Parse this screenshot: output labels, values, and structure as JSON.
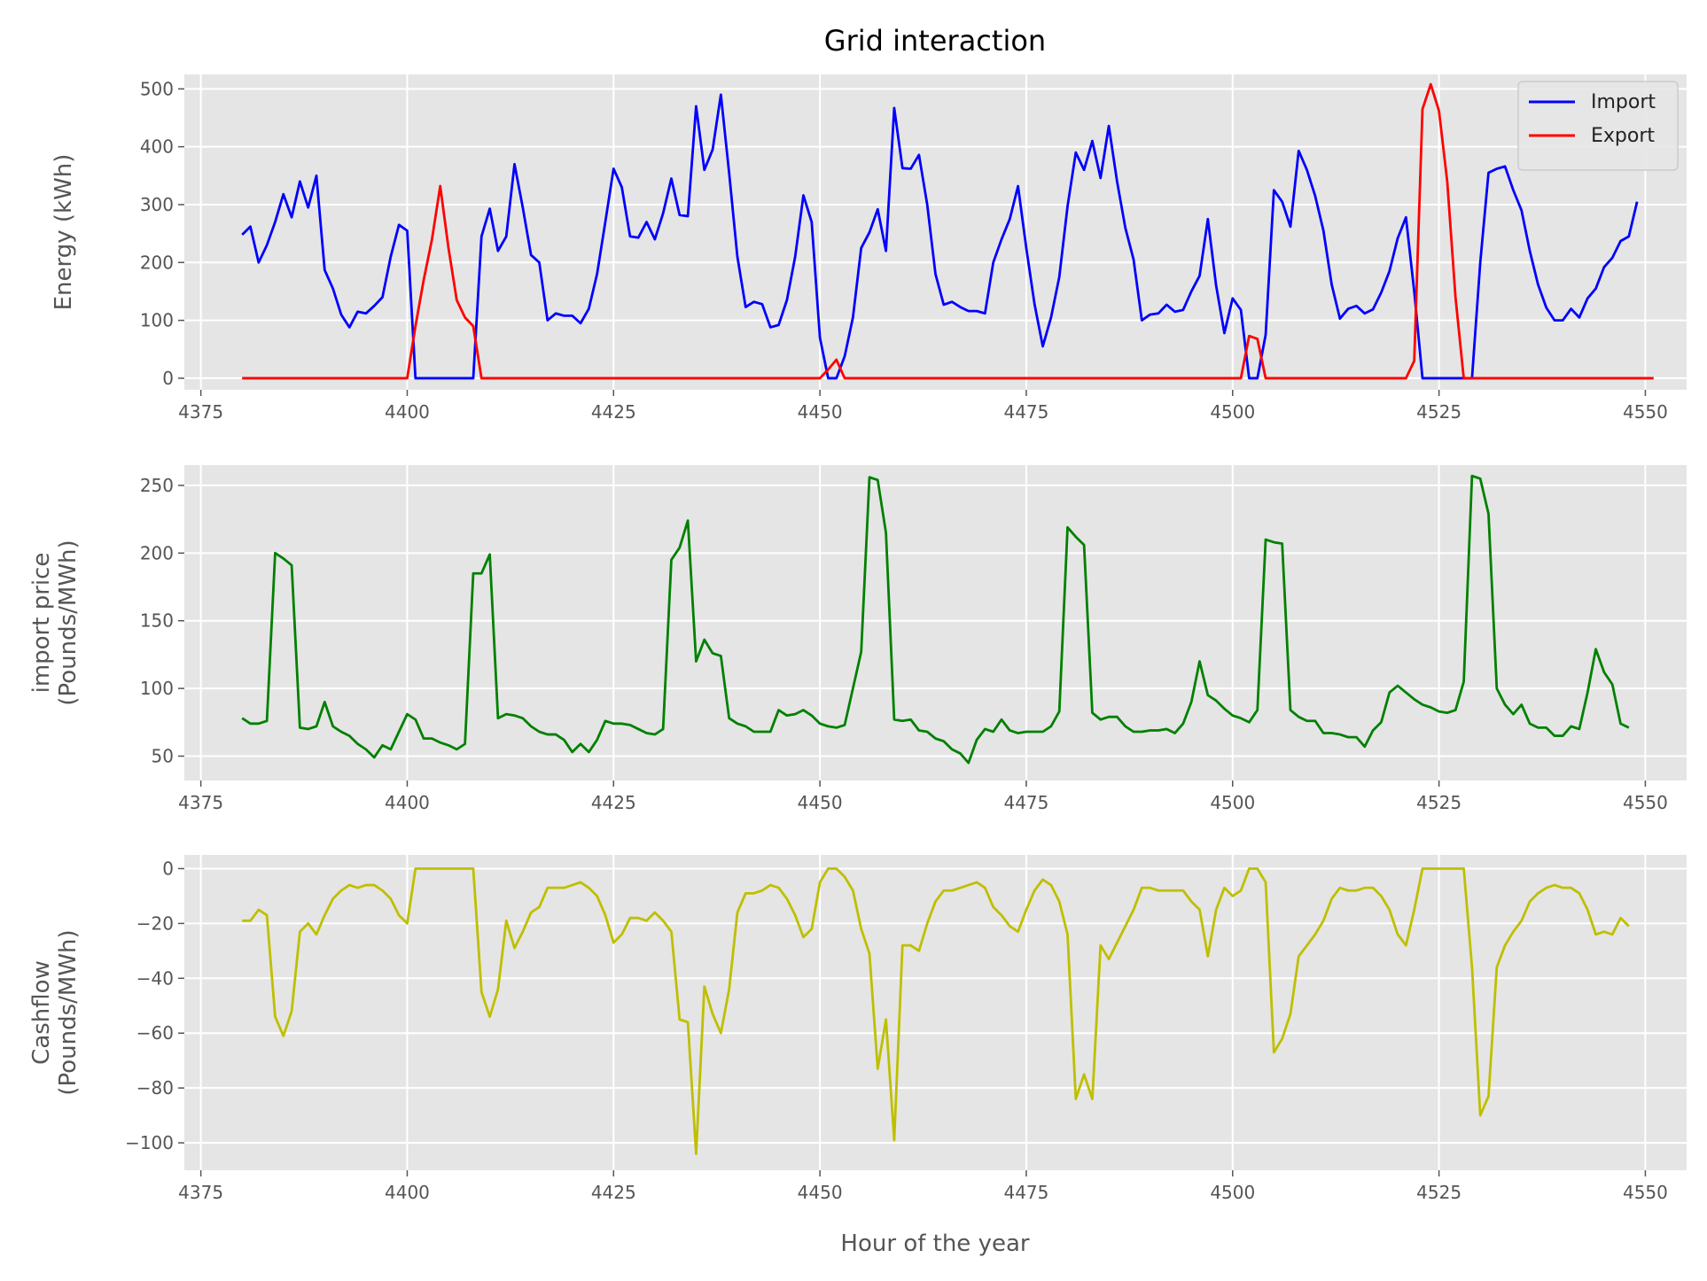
{
  "figure": {
    "title": "Grid interaction",
    "xlabel": "Hour of the year"
  },
  "chart_data": [
    {
      "type": "line",
      "title": "Grid interaction",
      "xlabel": "",
      "ylabel": "Energy (kWh)",
      "xlim": [
        4373,
        4555
      ],
      "ylim": [
        -20,
        525
      ],
      "xticks": [
        4375,
        4400,
        4425,
        4450,
        4475,
        4500,
        4525,
        4550
      ],
      "yticks": [
        0,
        100,
        200,
        300,
        400,
        500
      ],
      "grid": true,
      "legend": "top-right",
      "series": [
        {
          "name": "Import",
          "color": "#0000ff",
          "x_start": 4380,
          "x_step": 1,
          "values": [
            248,
            262,
            200,
            230,
            270,
            318,
            278,
            340,
            295,
            350,
            187,
            155,
            110,
            88,
            115,
            112,
            125,
            140,
            210,
            265,
            255,
            0,
            0,
            0,
            0,
            0,
            0,
            0,
            0,
            245,
            293,
            220,
            245,
            370,
            295,
            213,
            200,
            100,
            112,
            108,
            108,
            95,
            120,
            180,
            270,
            362,
            330,
            245,
            243,
            270,
            240,
            285,
            345,
            282,
            280,
            470,
            360,
            395,
            490,
            355,
            210,
            123,
            132,
            128,
            88,
            92,
            135,
            210,
            316,
            270,
            70,
            0,
            0,
            38,
            105,
            225,
            252,
            292,
            220,
            467,
            363,
            362,
            386,
            300,
            180,
            127,
            132,
            123,
            116,
            116,
            112,
            200,
            240,
            275,
            332,
            225,
            128,
            55,
            105,
            175,
            297,
            390,
            360,
            410,
            346,
            436,
            340,
            260,
            205,
            100,
            110,
            112,
            127,
            115,
            118,
            150,
            177,
            275,
            160,
            78,
            138,
            118,
            0,
            0,
            75,
            325,
            305,
            262,
            393,
            360,
            315,
            255,
            162,
            103,
            120,
            125,
            112,
            119,
            148,
            185,
            242,
            278,
            150,
            0,
            0,
            0,
            0,
            0,
            0,
            0,
            200,
            355,
            362,
            366,
            325,
            290,
            220,
            162,
            122,
            100,
            100,
            120,
            105,
            138,
            155,
            192,
            208,
            237,
            245,
            305
          ]
        },
        {
          "name": "Export",
          "color": "#ff0000",
          "x_start": 4380,
          "x_step": 1,
          "values": [
            0,
            0,
            0,
            0,
            0,
            0,
            0,
            0,
            0,
            0,
            0,
            0,
            0,
            0,
            0,
            0,
            0,
            0,
            0,
            0,
            0,
            90,
            170,
            240,
            332,
            225,
            135,
            105,
            90,
            0,
            0,
            0,
            0,
            0,
            0,
            0,
            0,
            0,
            0,
            0,
            0,
            0,
            0,
            0,
            0,
            0,
            0,
            0,
            0,
            0,
            0,
            0,
            0,
            0,
            0,
            0,
            0,
            0,
            0,
            0,
            0,
            0,
            0,
            0,
            0,
            0,
            0,
            0,
            0,
            0,
            0,
            15,
            32,
            0,
            0,
            0,
            0,
            0,
            0,
            0,
            0,
            0,
            0,
            0,
            0,
            0,
            0,
            0,
            0,
            0,
            0,
            0,
            0,
            0,
            0,
            0,
            0,
            0,
            0,
            0,
            0,
            0,
            0,
            0,
            0,
            0,
            0,
            0,
            0,
            0,
            0,
            0,
            0,
            0,
            0,
            0,
            0,
            0,
            0,
            0,
            0,
            0,
            73,
            68,
            0,
            0,
            0,
            0,
            0,
            0,
            0,
            0,
            0,
            0,
            0,
            0,
            0,
            0,
            0,
            0,
            0,
            0,
            30,
            465,
            508,
            462,
            340,
            140,
            0,
            0,
            0,
            0,
            0,
            0,
            0,
            0,
            0,
            0,
            0,
            0,
            0,
            0,
            0,
            0,
            0,
            0,
            0,
            0,
            0,
            0,
            0,
            0
          ]
        }
      ]
    },
    {
      "type": "line",
      "title": "",
      "xlabel": "",
      "ylabel": "import price\n(Pounds/MWh)",
      "xlim": [
        4373,
        4555
      ],
      "ylim": [
        32,
        265
      ],
      "xticks": [
        4375,
        4400,
        4425,
        4450,
        4475,
        4500,
        4525,
        4550
      ],
      "yticks": [
        50,
        100,
        150,
        200,
        250
      ],
      "grid": true,
      "legend": "none",
      "series": [
        {
          "name": "",
          "color": "#008000",
          "x_start": 4380,
          "x_step": 1,
          "values": [
            78,
            74,
            74,
            76,
            200,
            196,
            191,
            71,
            70,
            72,
            90,
            72,
            68,
            65,
            59,
            55,
            49,
            58,
            55,
            68,
            81,
            77,
            63,
            63,
            60,
            58,
            55,
            59,
            185,
            185,
            199,
            78,
            81,
            80,
            78,
            72,
            68,
            66,
            66,
            62,
            53,
            59,
            53,
            62,
            76,
            74,
            74,
            73,
            70,
            67,
            66,
            70,
            195,
            204,
            224,
            120,
            136,
            126,
            124,
            78,
            74,
            72,
            68,
            68,
            68,
            84,
            80,
            81,
            84,
            80,
            74,
            72,
            71,
            73,
            100,
            127,
            256,
            254,
            215,
            77,
            76,
            77,
            69,
            68,
            63,
            61,
            55,
            52,
            45,
            62,
            70,
            68,
            77,
            69,
            67,
            68,
            68,
            68,
            72,
            83,
            219,
            212,
            206,
            82,
            77,
            79,
            79,
            72,
            68,
            68,
            69,
            69,
            70,
            67,
            74,
            90,
            120,
            95,
            91,
            85,
            80,
            78,
            75,
            84,
            210,
            208,
            207,
            84,
            79,
            76,
            76,
            67,
            67,
            66,
            64,
            64,
            57,
            69,
            75,
            97,
            102,
            97,
            92,
            88,
            86,
            83,
            82,
            84,
            105,
            257,
            255,
            229,
            100,
            88,
            81,
            88,
            74,
            71,
            71,
            65,
            65,
            72,
            70,
            97,
            129,
            112,
            103,
            74,
            71
          ]
        }
      ]
    },
    {
      "type": "line",
      "title": "",
      "xlabel": "Hour of the year",
      "ylabel": "Cashflow\n(Pounds/MWh)",
      "xlim": [
        4373,
        4555
      ],
      "ylim": [
        -110,
        5
      ],
      "xticks": [
        4375,
        4400,
        4425,
        4450,
        4475,
        4500,
        4525,
        4550
      ],
      "yticks": [
        0,
        -20,
        -40,
        -60,
        -80,
        -100
      ],
      "grid": true,
      "legend": "none",
      "series": [
        {
          "name": "",
          "color": "#bfbf00",
          "x_start": 4380,
          "x_step": 1,
          "values": [
            -19,
            -19,
            -15,
            -17,
            -54,
            -61,
            -52,
            -23,
            -20,
            -24,
            -17,
            -11,
            -8,
            -6,
            -7,
            -6,
            -6,
            -8,
            -11,
            -17,
            -20,
            0,
            0,
            0,
            0,
            0,
            0,
            0,
            0,
            -45,
            -54,
            -44,
            -19,
            -29,
            -23,
            -16,
            -14,
            -7,
            -7,
            -7,
            -6,
            -5,
            -7,
            -10,
            -17,
            -27,
            -24,
            -18,
            -18,
            -19,
            -16,
            -19,
            -23,
            -55,
            -56,
            -104,
            -43,
            -53,
            -60,
            -44,
            -16,
            -9,
            -9,
            -8,
            -6,
            -7,
            -11,
            -17,
            -25,
            -22,
            -5,
            0,
            0,
            -3,
            -8,
            -22,
            -31,
            -73,
            -55,
            -99,
            -28,
            -28,
            -30,
            -20,
            -12,
            -8,
            -8,
            -7,
            -6,
            -5,
            -7,
            -14,
            -17,
            -21,
            -23,
            -15,
            -8,
            -4,
            -6,
            -12,
            -24,
            -84,
            -75,
            -84,
            -28,
            -33,
            -27,
            -21,
            -15,
            -7,
            -7,
            -8,
            -8,
            -8,
            -8,
            -12,
            -15,
            -32,
            -15,
            -7,
            -10,
            -8,
            0,
            0,
            -5,
            -67,
            -62,
            -53,
            -32,
            -28,
            -24,
            -19,
            -11,
            -7,
            -8,
            -8,
            -7,
            -7,
            -10,
            -15,
            -24,
            -28,
            -15,
            0,
            0,
            0,
            0,
            0,
            0,
            -36,
            -90,
            -83,
            -36,
            -28,
            -23,
            -19,
            -12,
            -9,
            -7,
            -6,
            -7,
            -7,
            -9,
            -15,
            -24,
            -23,
            -24,
            -18,
            -21
          ]
        }
      ]
    }
  ]
}
